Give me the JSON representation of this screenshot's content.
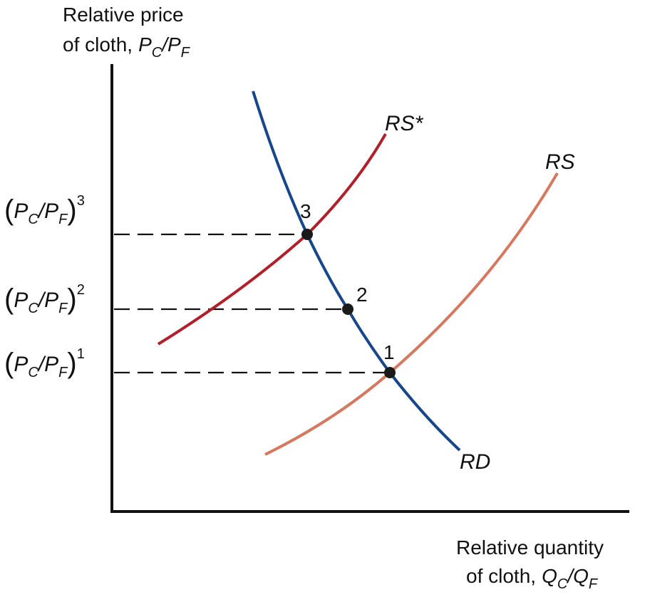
{
  "y_axis": {
    "line1": "Relative price",
    "line2": "of cloth,"
  },
  "x_axis": {
    "line1": "Relative quantity",
    "line2": "of cloth,"
  },
  "price": {
    "p": "P",
    "c": "C",
    "slash": "/",
    "f": "F"
  },
  "quantity": {
    "q": "Q",
    "c": "C",
    "slash": "/",
    "f": "F"
  },
  "parens": [
    "(",
    ")"
  ],
  "price_levels": [
    "3",
    "2",
    "1"
  ],
  "curves": {
    "rs_star": "RS*",
    "rs": "RS",
    "rd": "RD"
  },
  "points": [
    "1",
    "2",
    "3"
  ]
}
